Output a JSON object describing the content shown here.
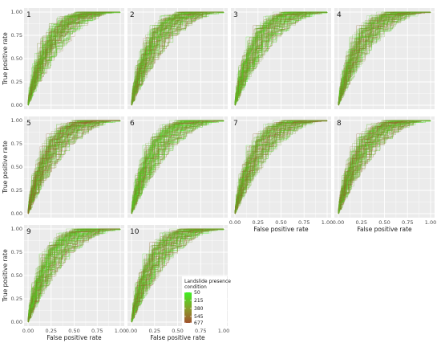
{
  "chart_data": {
    "type": "line",
    "description_kind": "ROC curve ensembles, small multiples",
    "panels": [
      "1",
      "2",
      "3",
      "4",
      "5",
      "6",
      "7",
      "8",
      "9",
      "10"
    ],
    "layout_cols": 4,
    "xlabel": "False positive rate",
    "ylabel": "True positive rate",
    "xlim": [
      0,
      1
    ],
    "ylim": [
      0,
      1
    ],
    "x_ticks": [
      "0.00",
      "0.25",
      "0.50",
      "0.75",
      "1.00"
    ],
    "y_ticks": [
      "0.00",
      "0.25",
      "0.50",
      "0.75",
      "1.00"
    ],
    "grid": true,
    "panel_background": "#ebebeb",
    "grid_color": "#ffffff",
    "legend": {
      "title_line1": "Landslide presence",
      "title_line2": "condition",
      "values": [
        50,
        215,
        380,
        545,
        677
      ],
      "labels": [
        "50",
        "215",
        "380",
        "545",
        "677"
      ],
      "color_low": "#3df020",
      "color_high": "#a0522d",
      "placement": "inside panel 10, bottom-right"
    },
    "representative_curve": {
      "fpr": [
        0.0,
        0.02,
        0.05,
        0.1,
        0.15,
        0.2,
        0.3,
        0.4,
        0.5,
        0.6,
        0.7,
        0.8,
        0.9,
        1.0
      ],
      "tpr": [
        0.0,
        0.3,
        0.5,
        0.64,
        0.72,
        0.78,
        0.86,
        0.91,
        0.94,
        0.96,
        0.975,
        0.985,
        0.993,
        1.0
      ]
    }
  }
}
